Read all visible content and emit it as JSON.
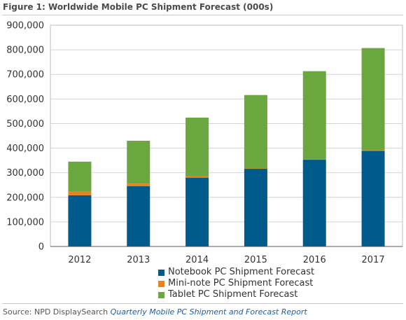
{
  "figure": {
    "title": "Figure 1: Worldwide Mobile PC Shipment Forecast (000s)",
    "source_prefix": "Source: NPD DisplaySearch ",
    "source_ref": "Quarterly Mobile PC Shipment and Forecast Report"
  },
  "chart_data": {
    "type": "bar",
    "stacked": true,
    "categories": [
      "2012",
      "2013",
      "2014",
      "2015",
      "2016",
      "2017"
    ],
    "series": [
      {
        "name": "Notebook PC Shipment Forecast",
        "color": "#005a8c",
        "values": [
          208000,
          245000,
          280000,
          316000,
          353000,
          389000
        ]
      },
      {
        "name": "Mini-note PC Shipment Forecast",
        "color": "#e8841f",
        "values": [
          17000,
          11000,
          5000,
          1500,
          700,
          3000
        ]
      },
      {
        "name": "Tablet PC Shipment Forecast",
        "color": "#6aa83f",
        "values": [
          120000,
          174000,
          239000,
          298500,
          359300,
          415000
        ]
      }
    ],
    "y_ticks": [
      "0",
      "100,000",
      "200,000",
      "300,000",
      "400,000",
      "500,000",
      "600,000",
      "700,000",
      "800,000",
      "900,000"
    ],
    "ylim": [
      0,
      900000
    ],
    "grid": true,
    "legend_position": "bottom"
  }
}
